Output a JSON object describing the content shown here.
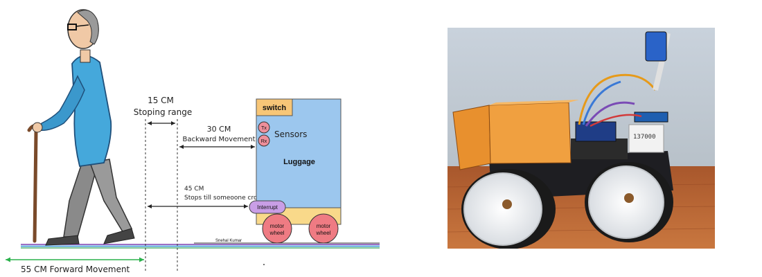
{
  "labels": {
    "switch": "switch",
    "tx": "Tx",
    "rx": "Rx",
    "sensors": "Sensors",
    "luggage": "Luggage",
    "interrupt": "Interrupt",
    "motor1": "motor",
    "wheel1": "wheel",
    "motor2": "motor",
    "wheel2": "wheel",
    "stop_range_value": "15 CM",
    "stop_range_label": "Stoping range",
    "backward_value": "30 CM",
    "backward_label": "Backward Movement",
    "stops_value": "45 CM",
    "stops_label": "Stops till someoone crosses",
    "forward": "55 CM Forward Movement",
    "author": "Snehal Kumar",
    "photo_label": "137000"
  },
  "colors": {
    "luggage_blue": "#9cc7ee",
    "switch_orange": "#f7c677",
    "sensor_pink": "#ee8f9b",
    "interrupt_purple": "#c99ee6",
    "wheel_red": "#ef7b83",
    "base_orange": "#f9d98a",
    "arrow_green": "#2bb24c",
    "shirt_blue": "#45a8db"
  },
  "icons": {
    "person": "elderly-man-with-cane-icon",
    "photo": "robot-car-photo"
  }
}
